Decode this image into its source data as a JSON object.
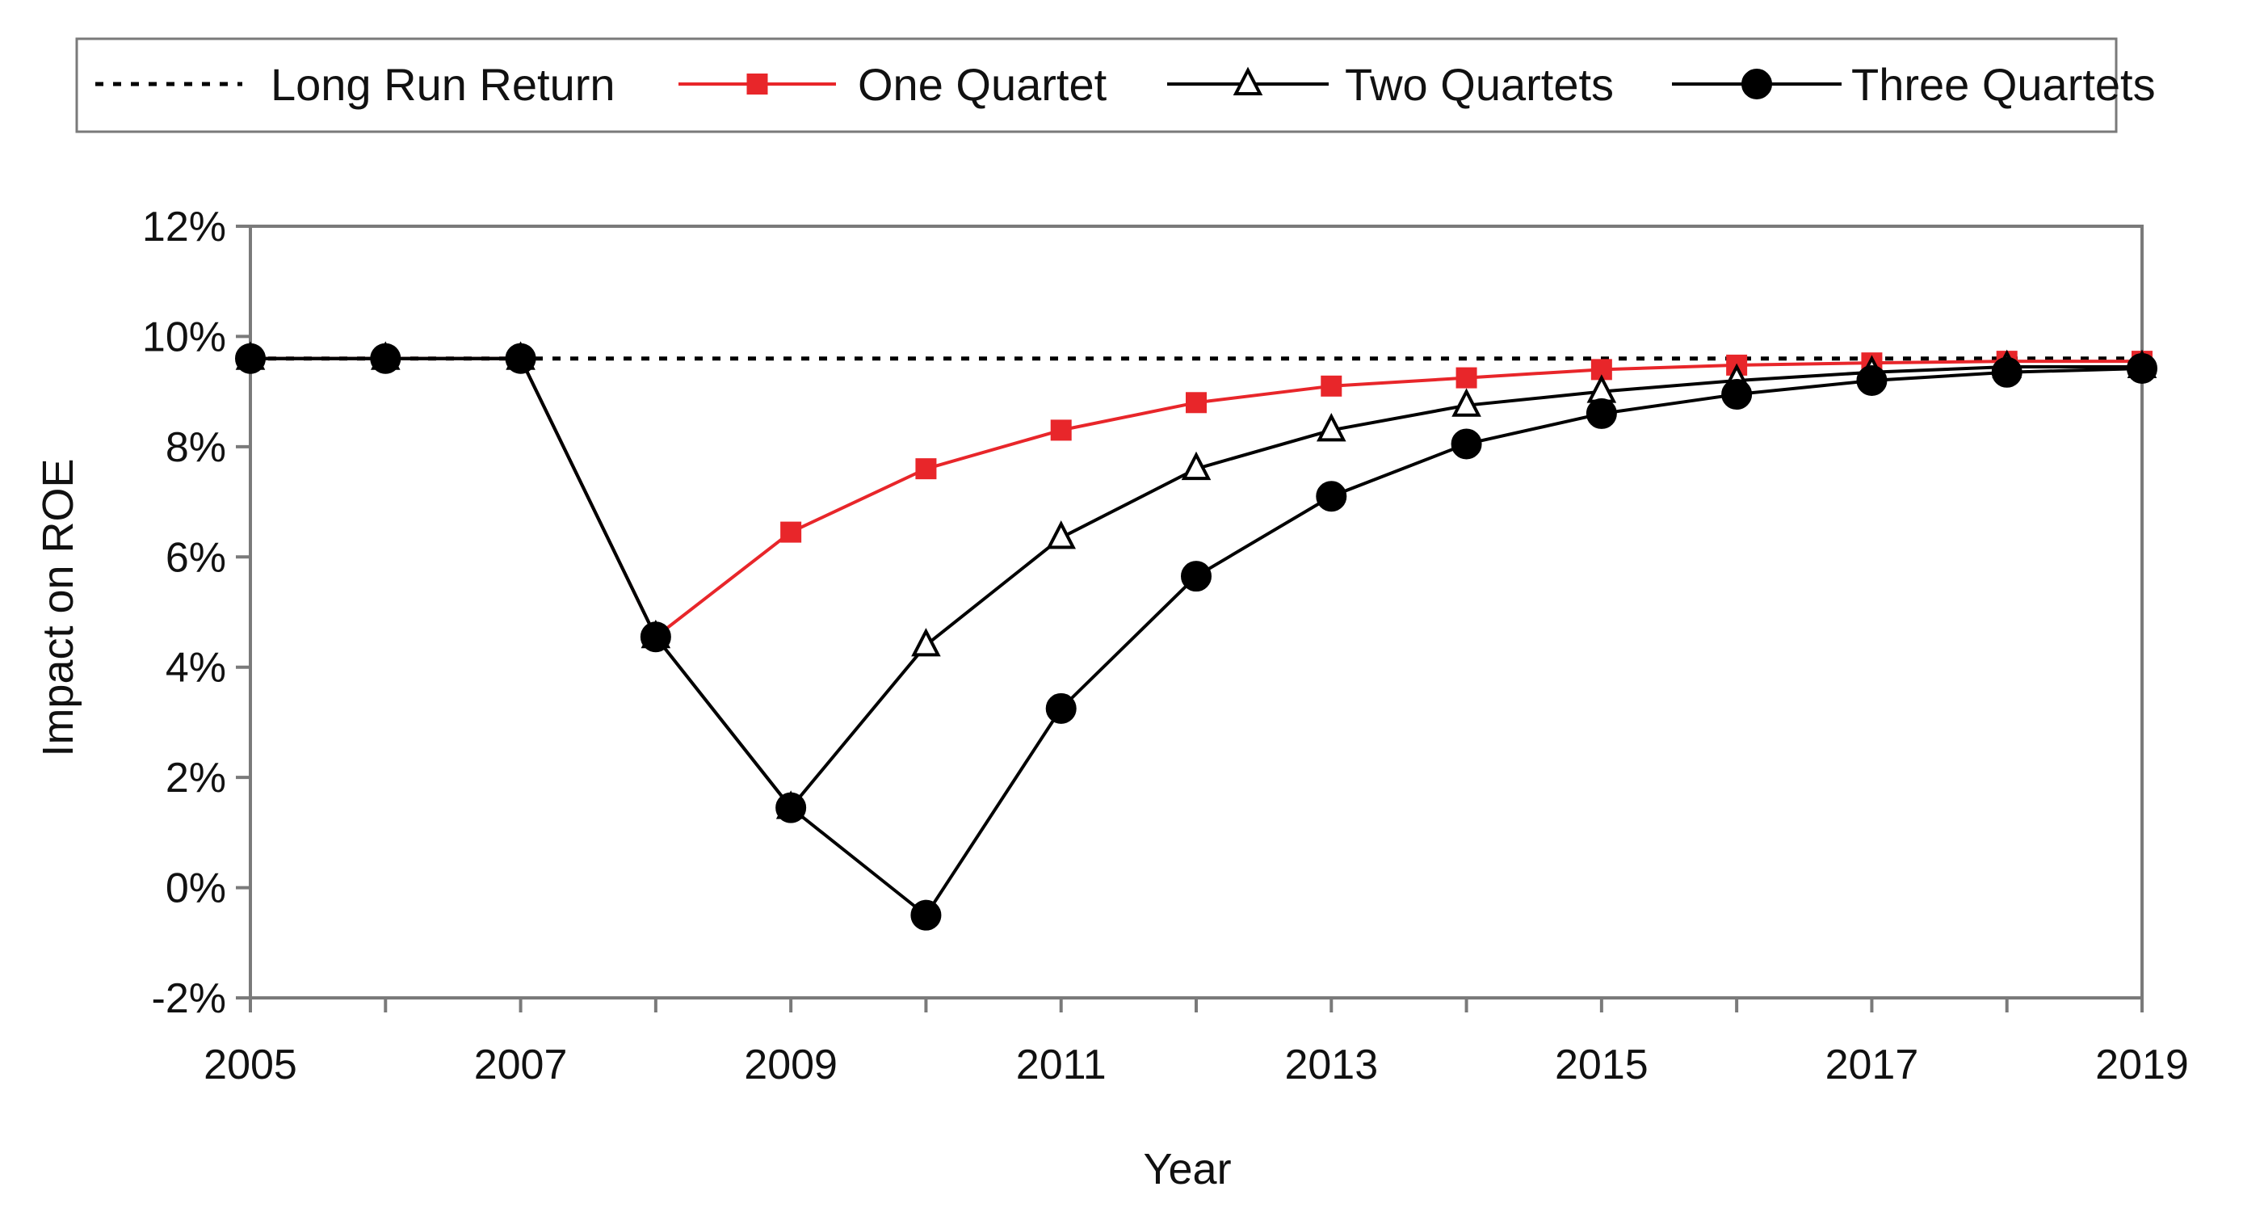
{
  "chart_data": {
    "type": "line",
    "title": "",
    "xlabel": "Year",
    "ylabel": "Impact on ROE",
    "x": [
      2005,
      2006,
      2007,
      2008,
      2009,
      2010,
      2011,
      2012,
      2013,
      2014,
      2015,
      2016,
      2017,
      2018,
      2019
    ],
    "x_tick_labels": [
      "2005",
      "2007",
      "2009",
      "2011",
      "2013",
      "2015",
      "2017",
      "2019"
    ],
    "x_tick_values": [
      2005,
      2007,
      2009,
      2011,
      2013,
      2015,
      2017,
      2019
    ],
    "y_tick_labels": [
      "12%",
      "10%",
      "8%",
      "6%",
      "4%",
      "2%",
      "0%",
      "-2%"
    ],
    "y_tick_values": [
      12,
      10,
      8,
      6,
      4,
      2,
      0,
      -2
    ],
    "xlim": [
      2005,
      2019
    ],
    "ylim": [
      -2,
      12
    ],
    "y_unit": "%",
    "grid": false,
    "legend_position": "top",
    "series": [
      {
        "name": "Long Run Return",
        "style": "dotted",
        "marker": "none",
        "color": "#000000",
        "values": [
          9.6,
          9.6,
          9.6,
          9.6,
          9.6,
          9.6,
          9.6,
          9.6,
          9.6,
          9.6,
          9.6,
          9.6,
          9.6,
          9.6,
          9.6
        ]
      },
      {
        "name": "One Quartet",
        "style": "solid",
        "marker": "square",
        "color": "#e8262a",
        "values": [
          9.6,
          9.6,
          9.6,
          4.55,
          6.45,
          7.6,
          8.3,
          8.8,
          9.1,
          9.25,
          9.4,
          9.48,
          9.52,
          9.55,
          9.55
        ]
      },
      {
        "name": "Two Quartets",
        "style": "solid",
        "marker": "triangle-open",
        "color": "#000000",
        "values": [
          9.6,
          9.6,
          9.6,
          4.55,
          1.45,
          4.4,
          6.35,
          7.6,
          8.3,
          8.75,
          9.0,
          9.2,
          9.35,
          9.45,
          9.45
        ]
      },
      {
        "name": "Three Quartets",
        "style": "solid",
        "marker": "circle",
        "color": "#000000",
        "values": [
          9.6,
          9.6,
          9.6,
          4.55,
          1.45,
          -0.5,
          3.25,
          5.65,
          7.1,
          8.05,
          8.6,
          8.95,
          9.2,
          9.35,
          9.42
        ]
      }
    ]
  }
}
